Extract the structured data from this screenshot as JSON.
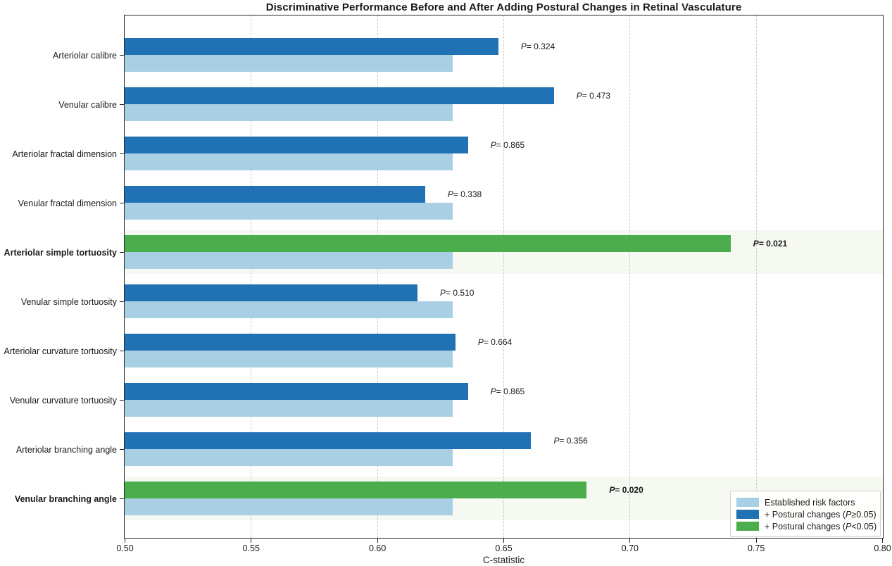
{
  "figure_title": "Discriminative Performance Before and After Adding Postural Changes in Retinal Vasculature",
  "p_symbol": "P",
  "colors": {
    "established": "#a9cfe5",
    "nonsignificant": "#2171b5",
    "significant": "#4bad4c",
    "highlight_band": "#f5f9f1",
    "gridline": "#cbcbcb",
    "spine": "#262626"
  },
  "chart_data": {
    "type": "bar",
    "orientation": "horizontal",
    "title": "Discriminative Performance Before and After Adding Postural Changes in Retinal Vasculature",
    "xlabel": "C-statistic",
    "xlim": [
      0.5,
      0.8
    ],
    "xtick_values": [
      0.5,
      0.55,
      0.6,
      0.65,
      0.7,
      0.75,
      0.8
    ],
    "xtick_labels": [
      "0.50",
      "0.55",
      "0.60",
      "0.65",
      "0.70",
      "0.75",
      "0.80"
    ],
    "grid": "vertical dashed gridlines at each x tick",
    "legend_position": "lower right",
    "series_note": "each category has two bars: top = established risk factors + postural change metric, bottom = established risk factors alone (0.630 for all)",
    "rows": [
      {
        "label": "Arteriolar calibre",
        "base": 0.63,
        "added": 0.648,
        "p": "= 0.324",
        "significant": false
      },
      {
        "label": "Venular calibre",
        "base": 0.63,
        "added": 0.67,
        "p": "= 0.473",
        "significant": false
      },
      {
        "label": "Arteriolar fractal dimension",
        "base": 0.63,
        "added": 0.636,
        "p": "= 0.865",
        "significant": false
      },
      {
        "label": "Venular fractal dimension",
        "base": 0.63,
        "added": 0.619,
        "p": "= 0.338",
        "significant": false
      },
      {
        "label": "Arteriolar simple tortuosity",
        "base": 0.63,
        "added": 0.74,
        "p": "= 0.021",
        "significant": true
      },
      {
        "label": "Venular simple tortuosity",
        "base": 0.63,
        "added": 0.616,
        "p": "= 0.510",
        "significant": false
      },
      {
        "label": "Arteriolar curvature tortuosity",
        "base": 0.63,
        "added": 0.631,
        "p": "= 0.664",
        "significant": false
      },
      {
        "label": "Venular curvature tortuosity",
        "base": 0.63,
        "added": 0.636,
        "p": "= 0.865",
        "significant": false
      },
      {
        "label": "Arteriolar branching angle",
        "base": 0.63,
        "added": 0.661,
        "p": "= 0.356",
        "significant": false
      },
      {
        "label": "Venular branching angle",
        "base": 0.63,
        "added": 0.683,
        "p": "= 0.020",
        "significant": true
      }
    ],
    "legend": [
      {
        "pre": "Established risk factors",
        "p": "",
        "post": "",
        "color_key": "established"
      },
      {
        "pre": "+ Postural changes (",
        "p": "P",
        "post": "≥0.05)",
        "color_key": "nonsignificant"
      },
      {
        "pre": "+ Postural changes (",
        "p": "P",
        "post": "<0.05)",
        "color_key": "significant"
      }
    ]
  }
}
